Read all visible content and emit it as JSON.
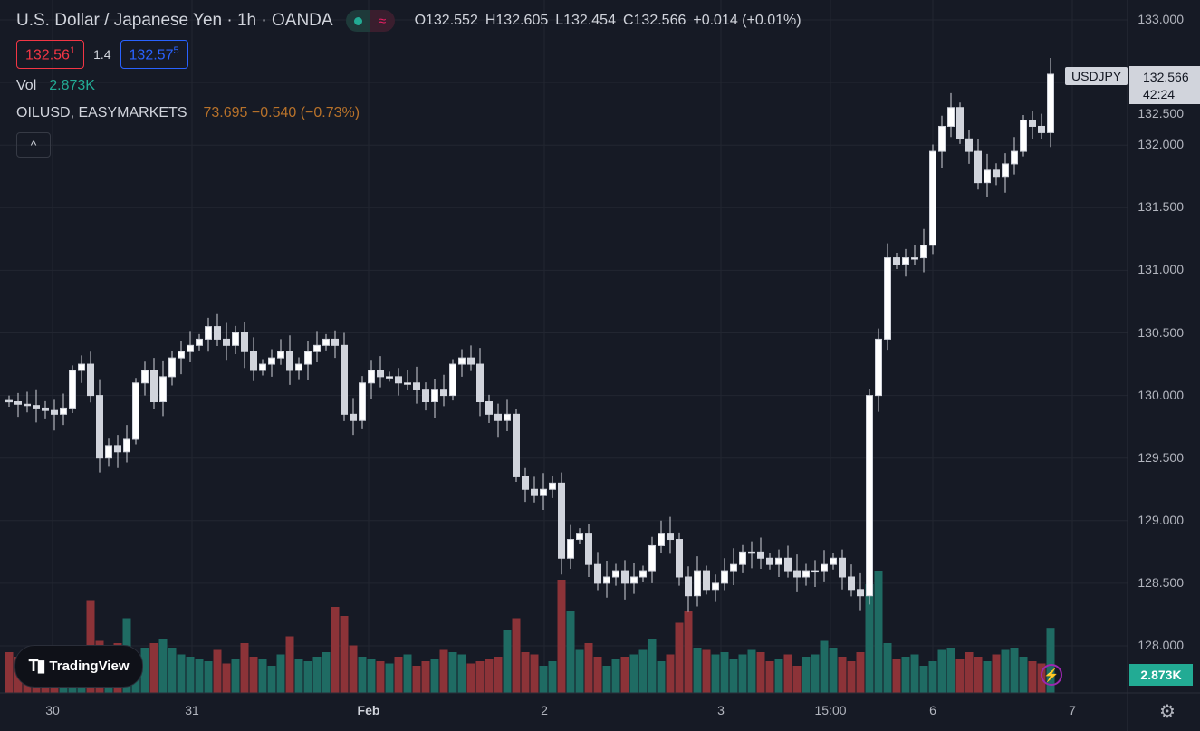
{
  "header": {
    "title": "U.S. Dollar / Japanese Yen · 1h · OANDA",
    "ohlc": {
      "open": "O132.552",
      "high": "H132.605",
      "low": "L132.454",
      "close": "C132.566",
      "change": "+0.014 (+0.01%)"
    },
    "sell_price": "132.56",
    "sell_sup": "1",
    "spread": "1.4",
    "buy_price": "132.57",
    "buy_sup": "5",
    "vol_label": "Vol",
    "vol_value": "2.873K",
    "compare_symbol": "OILUSD, EASYMARKETS",
    "compare_value": "73.695 −0.540 (−0.73%)",
    "collapse_icon": "^"
  },
  "price_axis": {
    "labels": [
      "133.000",
      "132.500",
      "132.000",
      "131.500",
      "131.000",
      "130.500",
      "130.000",
      "129.500",
      "129.000",
      "128.500",
      "128.000"
    ],
    "symbol_tag": "USDJPY",
    "last_price": "132.566",
    "countdown": "42:24",
    "volume_tag": "2.873K"
  },
  "time_axis": {
    "labels": [
      "30",
      "31",
      "Feb",
      "2",
      "3",
      "15:00",
      "6",
      "7"
    ]
  },
  "branding": {
    "logo_mark": "17",
    "logo_text": "TradingView"
  },
  "colors": {
    "up": "#ffffff",
    "down": "#ffffff",
    "vol_up": "#22ab94",
    "vol_down": "#f23645",
    "bg": "#161a25",
    "grid": "#222631"
  },
  "chart_data": {
    "type": "candlestick",
    "symbol": "USDJPY",
    "interval": "1h",
    "ylim": [
      127.7,
      133.1
    ],
    "open_first": 129.96,
    "close": [
      129.95,
      129.93,
      129.92,
      129.9,
      129.88,
      129.85,
      129.9,
      130.2,
      130.25,
      130.0,
      129.5,
      129.6,
      129.55,
      129.65,
      130.1,
      130.2,
      129.95,
      130.15,
      130.3,
      130.35,
      130.4,
      130.45,
      130.55,
      130.45,
      130.4,
      130.5,
      130.35,
      130.2,
      130.25,
      130.3,
      130.35,
      130.2,
      130.25,
      130.35,
      130.4,
      130.45,
      130.4,
      129.85,
      129.8,
      130.1,
      130.2,
      130.15,
      130.15,
      130.1,
      130.1,
      130.05,
      129.95,
      130.05,
      130.0,
      130.25,
      130.3,
      130.25,
      129.95,
      129.85,
      129.8,
      129.85,
      129.35,
      129.25,
      129.2,
      129.25,
      129.3,
      128.7,
      128.85,
      128.9,
      128.65,
      128.5,
      128.55,
      128.6,
      128.5,
      128.55,
      128.6,
      128.8,
      128.9,
      128.85,
      128.55,
      128.4,
      128.6,
      128.45,
      128.5,
      128.6,
      128.65,
      128.75,
      128.75,
      128.7,
      128.65,
      128.7,
      128.6,
      128.55,
      128.6,
      128.6,
      128.65,
      128.7,
      128.55,
      128.45,
      128.4,
      130.0,
      130.45,
      131.1,
      131.05,
      131.1,
      131.1,
      131.2,
      131.95,
      132.15,
      132.3,
      132.05,
      131.95,
      131.7,
      131.8,
      131.75,
      131.85,
      131.95,
      132.2,
      132.15,
      132.1,
      132.566
    ],
    "volume_k": [
      1.8,
      1.6,
      1.4,
      1.5,
      1.7,
      1.3,
      2.0,
      1.9,
      1.7,
      4.1,
      2.3,
      1.9,
      2.2,
      3.3,
      1.6,
      2.0,
      2.2,
      2.4,
      2.0,
      1.7,
      1.6,
      1.5,
      1.4,
      1.9,
      1.3,
      1.5,
      2.2,
      1.6,
      1.5,
      1.2,
      1.7,
      2.5,
      1.5,
      1.4,
      1.6,
      1.8,
      3.8,
      3.4,
      2.1,
      1.6,
      1.5,
      1.4,
      1.3,
      1.6,
      1.7,
      1.2,
      1.4,
      1.5,
      1.9,
      1.8,
      1.7,
      1.3,
      1.4,
      1.5,
      1.6,
      2.8,
      3.3,
      1.8,
      1.7,
      1.2,
      1.4,
      5.0,
      3.6,
      1.9,
      2.2,
      1.6,
      1.2,
      1.5,
      1.6,
      1.7,
      1.9,
      2.4,
      1.4,
      1.7,
      3.1,
      3.6,
      2.0,
      1.9,
      1.7,
      1.8,
      1.5,
      1.7,
      1.9,
      1.8,
      1.4,
      1.5,
      1.7,
      1.2,
      1.6,
      1.7,
      2.3,
      2.0,
      1.6,
      1.4,
      1.8,
      4.8,
      5.4,
      2.2,
      1.5,
      1.6,
      1.7,
      1.2,
      1.4,
      1.9,
      2.0,
      1.5,
      1.8,
      1.6,
      1.4,
      1.7,
      1.9,
      2.0,
      1.6,
      1.4,
      1.3,
      2.873
    ]
  }
}
